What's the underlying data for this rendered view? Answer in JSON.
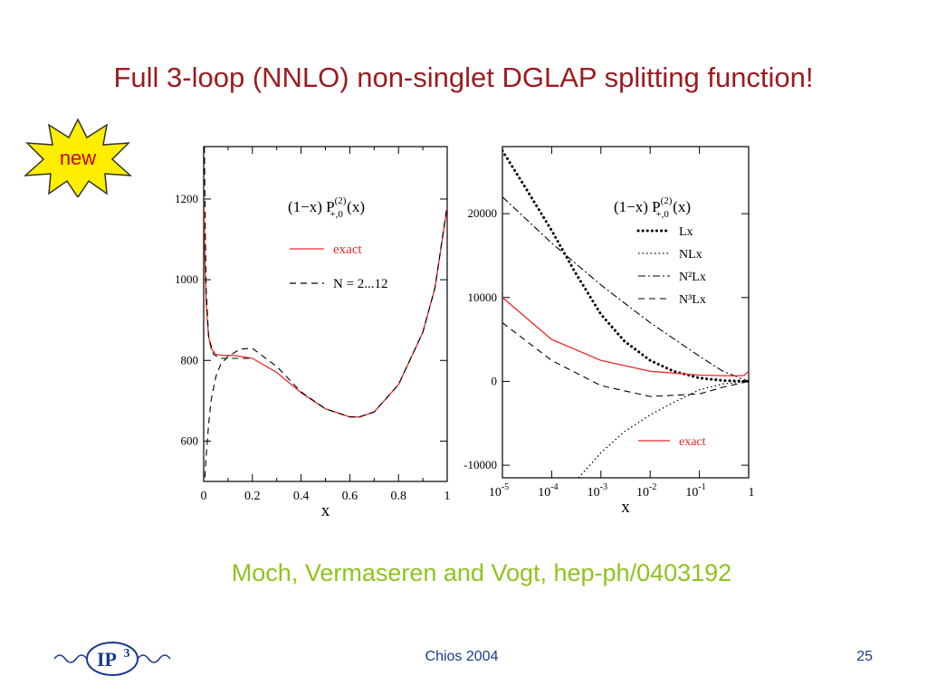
{
  "slide": {
    "title": "Full 3-loop (NNLO) non-singlet DGLAP splitting function!",
    "badge": "new",
    "citation": "Moch, Vermaseren and Vogt, hep-ph/0403192",
    "footer_center": "Chios 2004",
    "page_number": "25",
    "logo_text": "IP",
    "logo_superscript": "3",
    "colors": {
      "title": "#9b1b1e",
      "citation": "#8fc31f",
      "footer": "#1a3a8c",
      "badge_fill": "#ffee00",
      "exact_curve": "#e8292a"
    }
  },
  "chart_data": [
    {
      "type": "line",
      "title": "(1−x) P",
      "title_sup": "(2)",
      "title_sub": "+,0",
      "title_end": " (x)",
      "xlabel": "x",
      "ylabel": "",
      "xlim": [
        0,
        1
      ],
      "ylim": [
        500,
        1330
      ],
      "x_scale": "linear",
      "xticks": [
        0,
        0.2,
        0.4,
        0.6,
        0.8,
        1
      ],
      "xtick_labels": [
        "0",
        "0.2",
        "0.4",
        "0.6",
        "0.8",
        "1"
      ],
      "yticks": [
        600,
        800,
        1000,
        1200
      ],
      "ytick_labels": [
        "600",
        "800",
        "1000",
        "1200"
      ],
      "legend_position": "top-right",
      "series": [
        {
          "name": "exact",
          "style": "solid",
          "color": "#e8292a",
          "x": [
            0.002,
            0.005,
            0.01,
            0.02,
            0.03,
            0.05,
            0.08,
            0.12,
            0.2,
            0.3,
            0.4,
            0.5,
            0.6,
            0.64,
            0.7,
            0.8,
            0.9,
            0.95,
            1.0
          ],
          "y": [
            1175,
            1060,
            940,
            860,
            830,
            815,
            812,
            813,
            805,
            770,
            720,
            680,
            660,
            660,
            672,
            740,
            870,
            980,
            1180
          ]
        },
        {
          "name": "N = 2...12",
          "style": "dashed",
          "color": "#000000",
          "x": [
            0.005,
            0.01,
            0.02,
            0.03,
            0.05,
            0.07,
            0.1,
            0.15,
            0.2,
            0.3,
            0.4,
            0.5,
            0.6,
            0.64,
            0.7,
            0.8,
            0.9,
            0.95,
            1.0
          ],
          "y": [
            510,
            560,
            640,
            700,
            760,
            790,
            810,
            828,
            830,
            785,
            722,
            680,
            660,
            660,
            672,
            740,
            870,
            980,
            1185
          ]
        },
        {
          "name": "",
          "style": "dashed",
          "color": "#000000",
          "x": [
            0.003,
            0.006,
            0.01,
            0.02,
            0.04,
            0.07,
            0.1,
            0.2
          ],
          "y": [
            1330,
            1150,
            980,
            860,
            815,
            805,
            805,
            805
          ]
        }
      ]
    },
    {
      "type": "line",
      "title": "(1−x) P",
      "title_sup": "(2)",
      "title_sub": "+,0",
      "title_end": " (x)",
      "xlabel": "x",
      "ylabel": "",
      "xlim": [
        1e-05,
        1
      ],
      "ylim": [
        -11500,
        28000
      ],
      "x_scale": "log",
      "xticks": [
        1e-05,
        0.0001,
        0.001,
        0.01,
        0.1,
        1
      ],
      "xtick_base": "10",
      "xtick_exponents": [
        "-5",
        "-4",
        "-3",
        "-2",
        "-1",
        ""
      ],
      "xtick_final_label": "1",
      "yticks": [
        -10000,
        0,
        10000,
        20000
      ],
      "ytick_labels": [
        "-10000",
        "0",
        "10000",
        "20000"
      ],
      "legend_position": "top-right",
      "series": [
        {
          "name": "Lx",
          "style": "dotted-heavy",
          "color": "#000000",
          "x": [
            1e-05,
            3e-05,
            0.0001,
            0.0003,
            0.001,
            0.003,
            0.01,
            0.03,
            0.1,
            0.3,
            1
          ],
          "y": [
            27500,
            23000,
            18000,
            13000,
            8000,
            4800,
            2500,
            1200,
            400,
            100,
            0
          ]
        },
        {
          "name": "NLx",
          "style": "dotted",
          "color": "#000000",
          "x": [
            0.00035,
            0.0006,
            0.001,
            0.003,
            0.01,
            0.03,
            0.1,
            0.3,
            1
          ],
          "y": [
            -11500,
            -10000,
            -8500,
            -6000,
            -4000,
            -2500,
            -1000,
            -300,
            0
          ]
        },
        {
          "name": "N²Lx",
          "style": "dashdot",
          "color": "#000000",
          "x": [
            1e-05,
            0.0001,
            0.001,
            0.01,
            0.1,
            0.3,
            1
          ],
          "y": [
            22000,
            16500,
            11500,
            7000,
            3000,
            1200,
            0
          ]
        },
        {
          "name": "N³Lx",
          "style": "dashed",
          "color": "#000000",
          "x": [
            1e-05,
            0.0001,
            0.001,
            0.01,
            0.1,
            0.3,
            1
          ],
          "y": [
            7000,
            2500,
            -500,
            -1800,
            -1500,
            -700,
            0
          ]
        },
        {
          "name": "exact",
          "style": "solid",
          "color": "#e8292a",
          "x": [
            1e-05,
            0.0001,
            0.001,
            0.01,
            0.1,
            0.5,
            0.8,
            1
          ],
          "y": [
            10000,
            5000,
            2500,
            1200,
            750,
            650,
            700,
            1200
          ]
        }
      ]
    }
  ]
}
